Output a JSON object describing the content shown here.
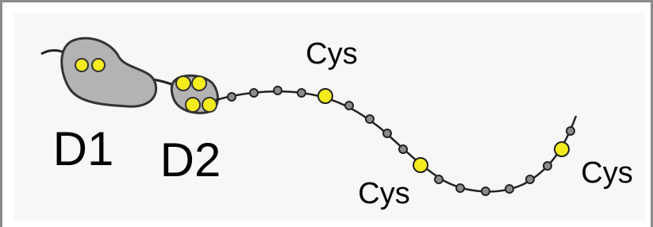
{
  "domains": [
    {
      "label": "D1"
    },
    {
      "label": "D2"
    }
  ],
  "cysteines": [
    {
      "label": "Cys"
    },
    {
      "label": "Cys"
    },
    {
      "label": "Cys"
    }
  ]
}
